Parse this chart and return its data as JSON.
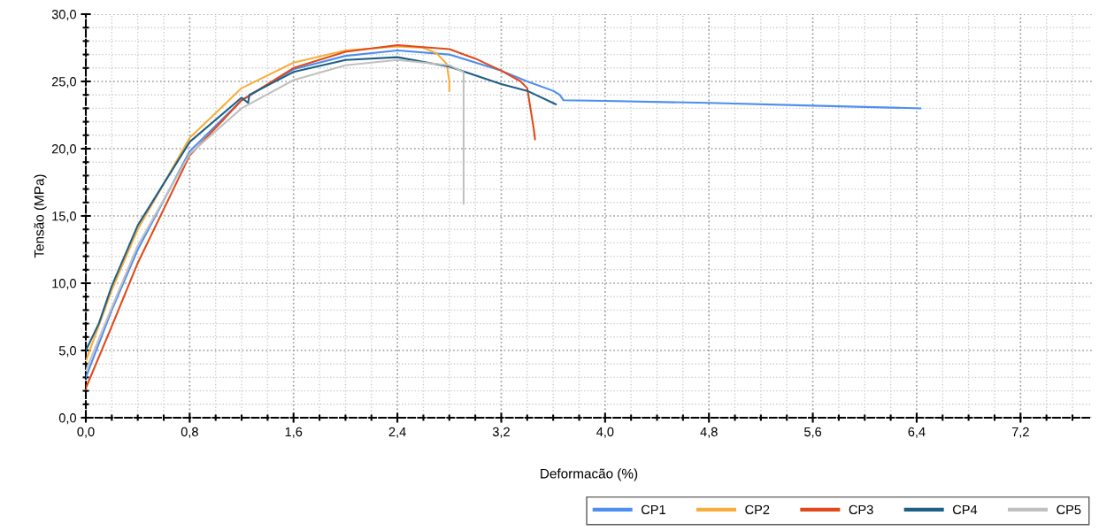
{
  "chart_data": {
    "type": "line",
    "xlabel": "Deformacão (%)",
    "ylabel": "Tensão (MPa)",
    "xlim": [
      0,
      7.75
    ],
    "ylim": [
      0,
      30
    ],
    "xticks": [
      {
        "value": 0,
        "label": "0,0"
      },
      {
        "value": 0.8,
        "label": "0,8"
      },
      {
        "value": 1.6,
        "label": "1,6"
      },
      {
        "value": 2.4,
        "label": "2,4"
      },
      {
        "value": 3.2,
        "label": "3,2"
      },
      {
        "value": 4.0,
        "label": "4,0"
      },
      {
        "value": 4.8,
        "label": "4,8"
      },
      {
        "value": 5.6,
        "label": "5,6"
      },
      {
        "value": 6.4,
        "label": "6,4"
      },
      {
        "value": 7.2,
        "label": "7,2"
      }
    ],
    "yticks": [
      {
        "value": 0,
        "label": "0,0"
      },
      {
        "value": 5,
        "label": "5,0"
      },
      {
        "value": 10,
        "label": "10,0"
      },
      {
        "value": 15,
        "label": "15,0"
      },
      {
        "value": 20,
        "label": "20,0"
      },
      {
        "value": 25,
        "label": "25,0"
      },
      {
        "value": 30,
        "label": "30,0"
      }
    ],
    "grid": true,
    "legend": "bottom right",
    "line_style": "solid",
    "series": [
      {
        "name": "CP1",
        "color": "#4d8ef0",
        "x": [
          0,
          0.2,
          0.4,
          0.8,
          1.2,
          1.6,
          2.0,
          2.4,
          2.8,
          3.2,
          3.4,
          3.6,
          3.65,
          3.68,
          4.0,
          4.8,
          5.6,
          6.43
        ],
        "values": [
          3.0,
          8.0,
          12.5,
          19.8,
          23.6,
          25.9,
          26.9,
          27.3,
          27.0,
          25.8,
          25.0,
          24.3,
          24.0,
          23.6,
          23.55,
          23.4,
          23.2,
          23.0
        ]
      },
      {
        "name": "CP2",
        "color": "#f7ae3c",
        "x": [
          0,
          0.2,
          0.4,
          0.8,
          1.2,
          1.6,
          2.0,
          2.4,
          2.6,
          2.7,
          2.78,
          2.8,
          2.8
        ],
        "values": [
          4.2,
          9.5,
          14.0,
          20.8,
          24.5,
          26.4,
          27.3,
          27.6,
          27.5,
          27.1,
          26.3,
          25.0,
          24.3
        ]
      },
      {
        "name": "CP3",
        "color": "#e04a1a",
        "x": [
          0,
          0.2,
          0.4,
          0.8,
          1.2,
          1.6,
          2.0,
          2.4,
          2.8,
          3.0,
          3.2,
          3.35,
          3.4,
          3.45,
          3.46
        ],
        "values": [
          2.2,
          6.8,
          11.5,
          19.5,
          23.6,
          26.0,
          27.2,
          27.7,
          27.4,
          26.7,
          25.8,
          25.0,
          24.5,
          21.5,
          20.7
        ]
      },
      {
        "name": "CP4",
        "color": "#1f5f86",
        "x": [
          0,
          0.1,
          0.2,
          0.4,
          0.8,
          1.2,
          1.25,
          1.26,
          1.6,
          2.0,
          2.4,
          2.8,
          3.2,
          3.4,
          3.62
        ],
        "values": [
          5.0,
          7.0,
          9.8,
          14.3,
          20.5,
          23.8,
          23.4,
          24.0,
          25.7,
          26.6,
          26.8,
          26.1,
          24.8,
          24.3,
          23.3
        ]
      },
      {
        "name": "CP5",
        "color": "#c0c0c0",
        "x": [
          0,
          0.2,
          0.4,
          0.8,
          1.2,
          1.6,
          2.0,
          2.4,
          2.8,
          2.91,
          2.91
        ],
        "values": [
          3.5,
          8.2,
          12.8,
          19.6,
          23.0,
          25.1,
          26.2,
          26.6,
          26.2,
          25.7,
          15.9
        ]
      }
    ]
  }
}
